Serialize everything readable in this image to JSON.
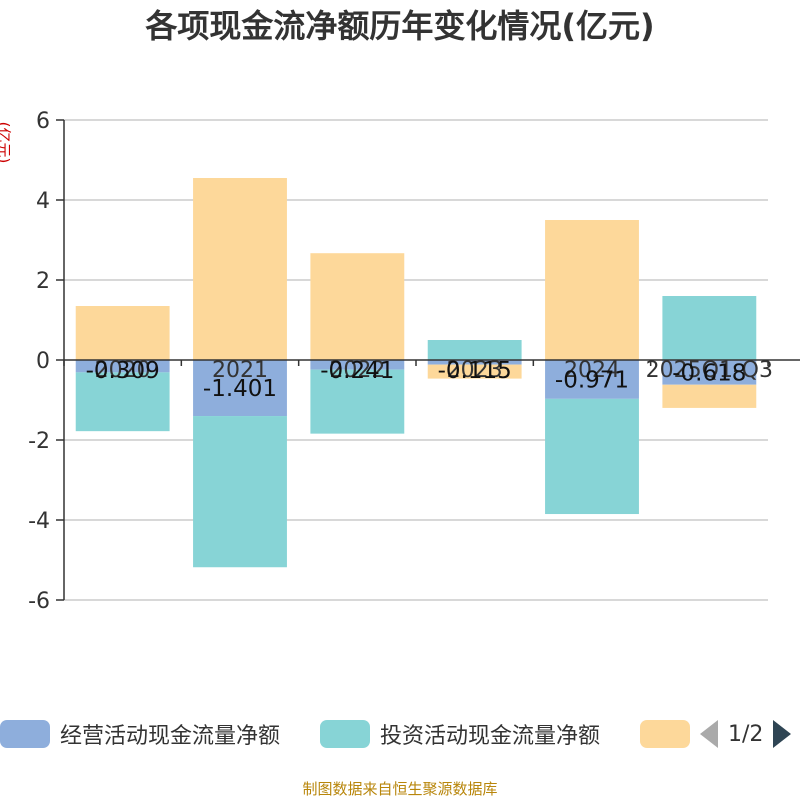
{
  "title": "各项现金流净额历年变化情况(亿元)",
  "y_unit": "(亿元)",
  "source_note": "制图数据来自恒生聚源数据库",
  "colors": {
    "operating": "#8eaedc",
    "investing": "#87d4d6",
    "financing": "#fdd89a",
    "axis": "#333333",
    "grid": "#cccccc"
  },
  "legend": {
    "items": [
      {
        "label": "经营活动现金流量净额",
        "color": "#8eaedc"
      },
      {
        "label": "投资活动现金流量净额",
        "color": "#87d4d6"
      },
      {
        "label": "",
        "color": "#fdd89a"
      }
    ],
    "page_indicator": "1/2"
  },
  "chart_data": {
    "type": "bar",
    "stacked": true,
    "title": "各项现金流净额历年变化情况(亿元)",
    "ylabel": "(亿元)",
    "ylim": [
      -6,
      6
    ],
    "y_ticks": [
      -6,
      -4,
      -2,
      0,
      2,
      4,
      6
    ],
    "grid": true,
    "legend_position": "bottom",
    "categories": [
      "2020",
      "2021",
      "2022",
      "2023",
      "2024",
      "2025Q1-Q3"
    ],
    "series": [
      {
        "name": "经营活动现金流量净额",
        "values": [
          -0.309,
          -1.401,
          -0.241,
          -0.115,
          -0.971,
          -0.618
        ],
        "show_labels": true
      },
      {
        "name": "投资活动现金流量净额",
        "values": [
          -1.47,
          -3.78,
          -1.6,
          0.5,
          -2.88,
          1.6
        ],
        "show_labels": false
      },
      {
        "values": [
          1.35,
          4.55,
          2.67,
          -0.35,
          3.5,
          -0.58
        ],
        "show_labels": false
      }
    ]
  }
}
